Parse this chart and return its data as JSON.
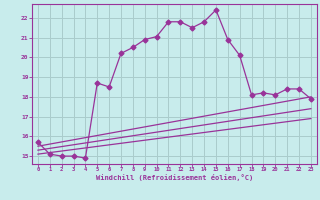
{
  "xlabel": "Windchill (Refroidissement éolien,°C)",
  "background_color": "#c8ecec",
  "line_color": "#993399",
  "grid_color": "#aacccc",
  "xlim": [
    -0.5,
    23.5
  ],
  "ylim": [
    14.6,
    22.7
  ],
  "xtick_labels": [
    "0",
    "1",
    "2",
    "3",
    "4",
    "5",
    "6",
    "7",
    "8",
    "9",
    "10",
    "11",
    "12",
    "13",
    "14",
    "15",
    "16",
    "17",
    "18",
    "19",
    "20",
    "21",
    "22",
    "23"
  ],
  "ytick_labels": [
    "15",
    "16",
    "17",
    "18",
    "19",
    "20",
    "21",
    "22"
  ],
  "yticks": [
    15,
    16,
    17,
    18,
    19,
    20,
    21,
    22
  ],
  "line1_x": [
    0,
    1,
    2,
    3,
    4,
    5,
    6,
    7,
    8,
    9,
    10,
    11,
    12,
    13,
    14,
    15,
    16,
    17,
    18,
    19,
    20,
    21,
    22,
    23
  ],
  "line1_y": [
    15.7,
    15.1,
    15.0,
    15.0,
    14.9,
    18.7,
    18.5,
    20.2,
    20.5,
    20.9,
    21.05,
    21.8,
    21.8,
    21.5,
    21.8,
    22.4,
    20.9,
    20.1,
    18.1,
    18.2,
    18.1,
    18.4,
    18.4,
    17.9
  ],
  "line2_x": [
    0,
    23
  ],
  "line2_y": [
    15.1,
    16.9
  ],
  "line3_x": [
    0,
    23
  ],
  "line3_y": [
    15.3,
    17.4
  ],
  "line4_x": [
    0,
    23
  ],
  "line4_y": [
    15.5,
    18.0
  ]
}
